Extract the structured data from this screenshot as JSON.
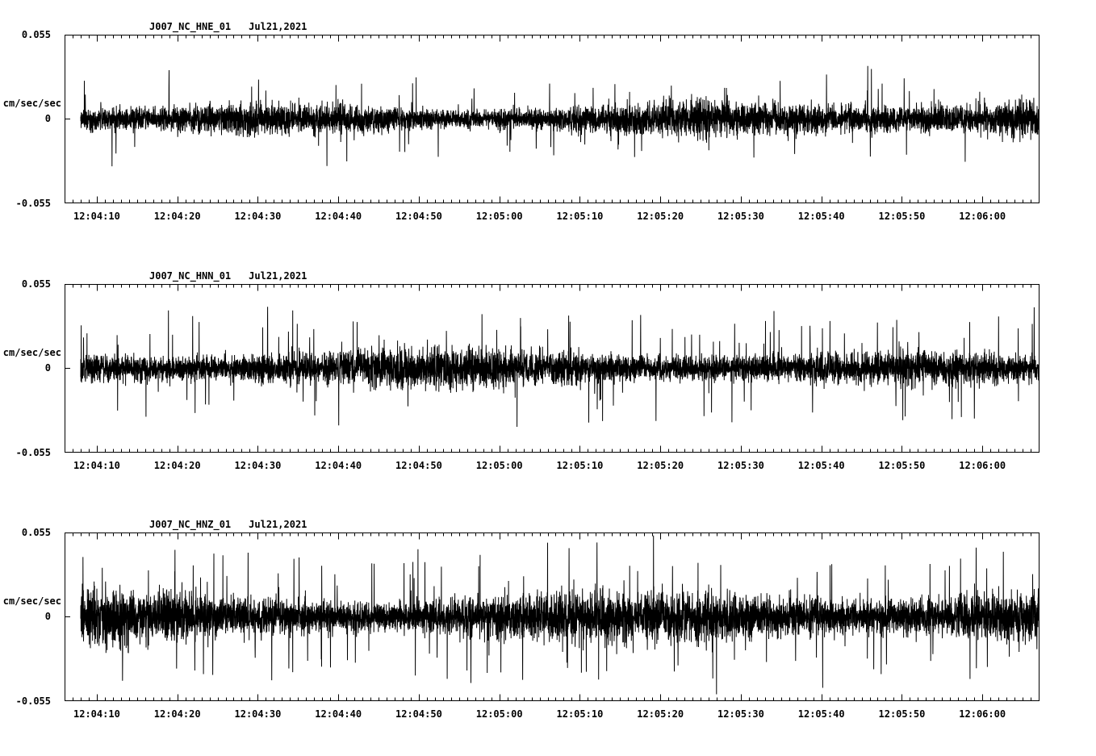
{
  "page": {
    "background": "#ffffff",
    "trace_color": "#000000"
  },
  "chart_data": [
    {
      "type": "line",
      "title": "J007_NC_HNE_01",
      "date": "Jul21,2021",
      "ylabel": "cm/sec/sec",
      "ylim": [
        -0.055,
        0.055
      ],
      "ytick_labels": [
        "-0.055",
        "0",
        "0.055"
      ],
      "x_start": "12:04:06",
      "x_end": "12:06:07",
      "duration_s": 121,
      "minor_tick_interval_s": 1,
      "major_tick_offsets_s": [
        4,
        14,
        24,
        34,
        44,
        54,
        64,
        74,
        84,
        94,
        104,
        114
      ],
      "x_tick_labels": [
        "12:04:10",
        "12:04:20",
        "12:04:30",
        "12:04:40",
        "12:04:50",
        "12:05:00",
        "12:05:10",
        "12:05:20",
        "12:05:30",
        "12:05:40",
        "12:05:50",
        "12:06:00"
      ],
      "grid": false,
      "legend": "none",
      "signal": {
        "kind": "continuous ambient seismic noise, zero mean",
        "points": 7000,
        "start_offset_s": 2,
        "band_amplitude": 0.016,
        "spike_amplitude": 0.03,
        "spike_probability": 0.012,
        "spike_up_bias": 0.58,
        "env_freq1": 0.0021,
        "env_freq2": 0.0007,
        "seed": 11
      }
    },
    {
      "type": "line",
      "title": "J007_NC_HNN_01",
      "date": "Jul21,2021",
      "ylabel": "cm/sec/sec",
      "ylim": [
        -0.055,
        0.055
      ],
      "ytick_labels": [
        "-0.055",
        "0",
        "0.055"
      ],
      "x_start": "12:04:06",
      "x_end": "12:06:07",
      "duration_s": 121,
      "minor_tick_interval_s": 1,
      "major_tick_offsets_s": [
        4,
        14,
        24,
        34,
        44,
        54,
        64,
        74,
        84,
        94,
        104,
        114
      ],
      "x_tick_labels": [
        "12:04:10",
        "12:04:20",
        "12:04:30",
        "12:04:40",
        "12:04:50",
        "12:05:00",
        "12:05:10",
        "12:05:20",
        "12:05:30",
        "12:05:40",
        "12:05:50",
        "12:06:00"
      ],
      "grid": false,
      "legend": "none",
      "signal": {
        "kind": "continuous ambient seismic noise, zero mean",
        "points": 7000,
        "start_offset_s": 2,
        "band_amplitude": 0.016,
        "spike_amplitude": 0.037,
        "spike_probability": 0.016,
        "spike_up_bias": 0.55,
        "env_freq1": 0.0018,
        "env_freq2": 0.0006,
        "seed": 22
      }
    },
    {
      "type": "line",
      "title": "J007_NC_HNZ_01",
      "date": "Jul21,2021",
      "ylabel": "cm/sec/sec",
      "ylim": [
        -0.055,
        0.055
      ],
      "ytick_labels": [
        "-0.055",
        "0",
        "0.055"
      ],
      "x_start": "12:04:06",
      "x_end": "12:06:07",
      "duration_s": 121,
      "minor_tick_interval_s": 1,
      "major_tick_offsets_s": [
        4,
        14,
        24,
        34,
        44,
        54,
        64,
        74,
        84,
        94,
        104,
        114
      ],
      "x_tick_labels": [
        "12:04:10",
        "12:04:20",
        "12:04:30",
        "12:04:40",
        "12:04:50",
        "12:05:00",
        "12:05:10",
        "12:05:20",
        "12:05:30",
        "12:05:40",
        "12:05:50",
        "12:06:00"
      ],
      "grid": false,
      "legend": "none",
      "signal": {
        "kind": "continuous ambient seismic noise, zero mean",
        "points": 7000,
        "start_offset_s": 2,
        "band_amplitude": 0.026,
        "spike_amplitude": 0.043,
        "spike_probability": 0.02,
        "spike_up_bias": 0.52,
        "env_freq1": 0.0016,
        "env_freq2": 0.0005,
        "seed": 33
      }
    }
  ]
}
